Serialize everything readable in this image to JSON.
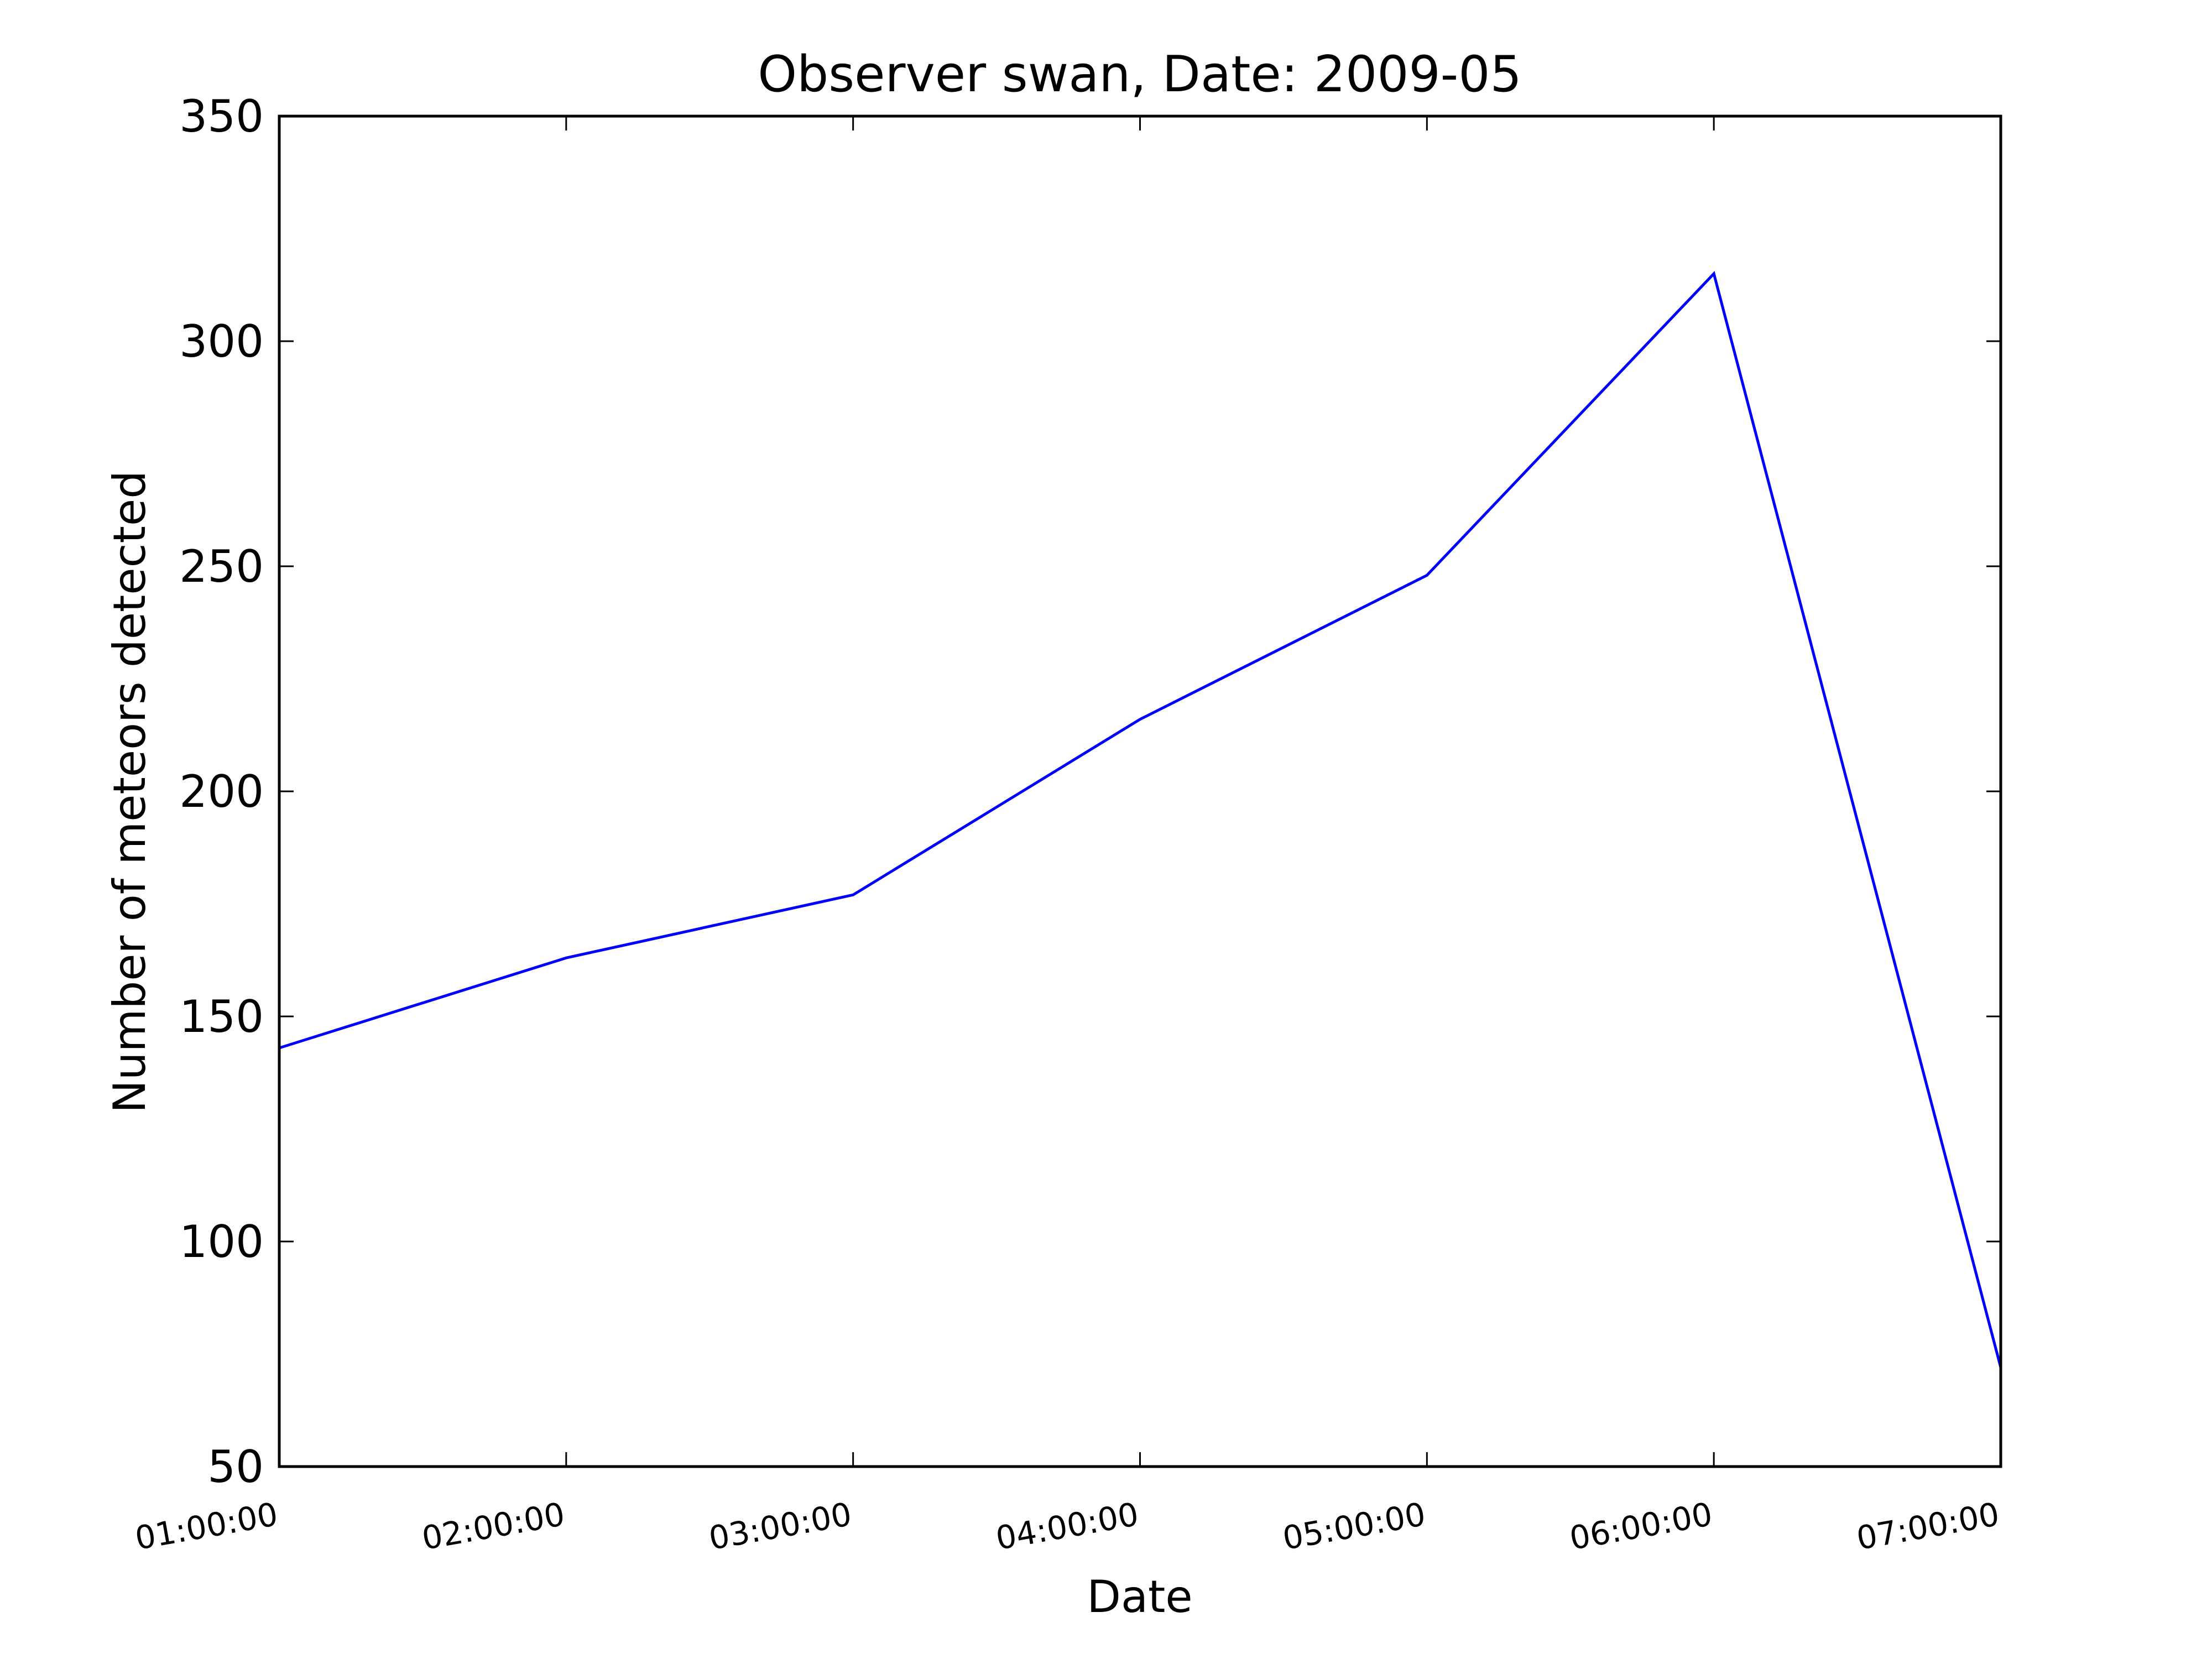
{
  "chart_data": {
    "type": "line",
    "title": "Observer swan, Date: 2009-05",
    "xlabel": "Date",
    "ylabel": "Number of meteors detected",
    "x": [
      "01:00:00",
      "02:00:00",
      "03:00:00",
      "04:00:00",
      "05:00:00",
      "06:00:00",
      "07:00:00"
    ],
    "series": [
      {
        "values": [
          143,
          163,
          177,
          216,
          248,
          315,
          72
        ],
        "color": "#0000ff"
      }
    ],
    "ylim": [
      50,
      350
    ],
    "yticks": [
      50,
      100,
      150,
      200,
      250,
      300,
      350
    ],
    "grid": false,
    "legend": "none"
  }
}
